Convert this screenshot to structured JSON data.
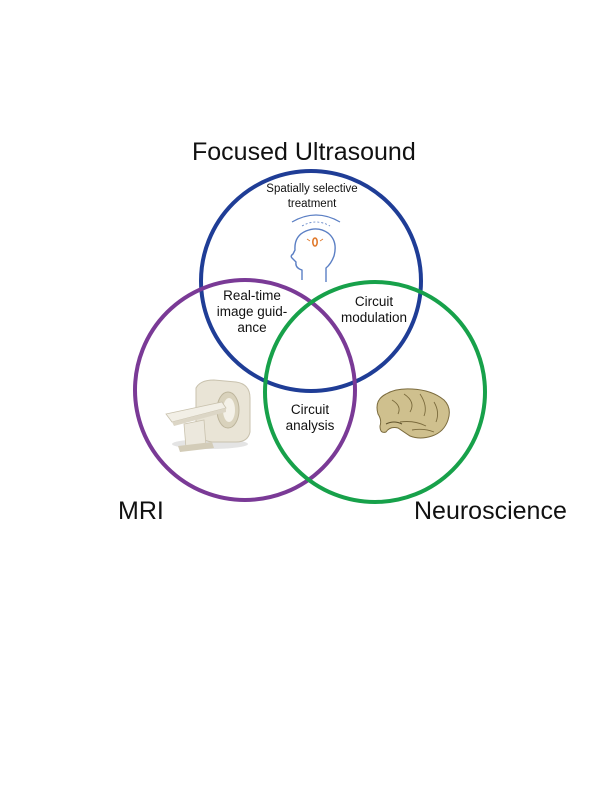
{
  "title": "Focused Ultrasound",
  "circles": {
    "fus": {
      "label": "Focused Ultrasound",
      "color": "#1f3d96"
    },
    "mri": {
      "label": "MRI",
      "color": "#7a3a96"
    },
    "neuro": {
      "label": "Neuroscience",
      "color": "#17a14a"
    }
  },
  "mri_label": "MRI",
  "neuro_label": "Neuroscience",
  "regions": {
    "fus_only": [
      "Spatially selective",
      "treatment"
    ],
    "fus_mri": [
      "Real-time",
      "image guid-",
      "ance"
    ],
    "fus_neuro": [
      "Circuit",
      "modulation"
    ],
    "mri_neuro": [
      "Circuit",
      "analysis"
    ]
  },
  "icons": {
    "fus": "head-ultrasound-icon",
    "mri": "mri-scanner-icon",
    "neuro": "brain-icon"
  },
  "colors": {
    "focus_orange": "#e0782a",
    "head_outline": "#5b7fc4",
    "brain": "#cfc08e"
  }
}
